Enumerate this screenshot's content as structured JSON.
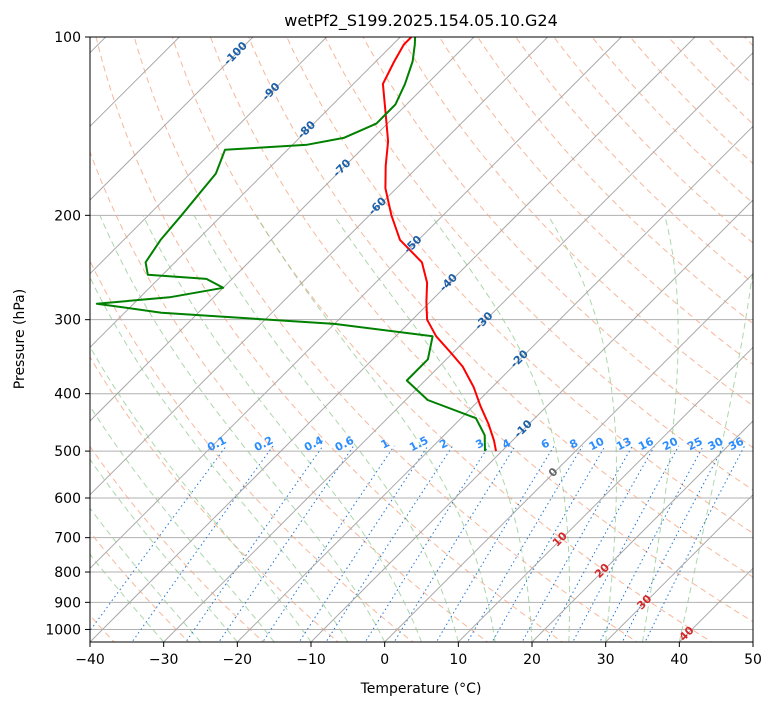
{
  "chart_data": {
    "type": "skew-t",
    "title": "wetPf2_S199.2025.154.05.10.G24",
    "xlabel": "Temperature (°C)",
    "ylabel": "Pressure (hPa)",
    "xlim": [
      -40,
      50
    ],
    "ylim_hpa": [
      1050,
      100
    ],
    "y_scale": "log",
    "grid": true,
    "x_ticks": [
      -40,
      -30,
      -20,
      -10,
      0,
      10,
      20,
      30,
      40,
      50
    ],
    "x_tick_labels": [
      "−40",
      "−30",
      "−20",
      "−10",
      "0",
      "10",
      "20",
      "30",
      "40",
      "50"
    ],
    "y_ticks": [
      100,
      200,
      300,
      400,
      500,
      600,
      700,
      800,
      900,
      1000
    ],
    "y_tick_labels": [
      "100",
      "200",
      "300",
      "400",
      "500",
      "600",
      "700",
      "800",
      "900",
      "1000"
    ],
    "isotherm_labels": {
      "values": [
        -100,
        -90,
        -80,
        -70,
        -60,
        -50,
        -40,
        -30,
        -20,
        -10,
        0,
        10,
        20,
        30,
        40
      ],
      "text": [
        "-100",
        "-90",
        "-80",
        "-70",
        "-60",
        "-50",
        "-40",
        "-30",
        "-20",
        "-10",
        "0",
        "10",
        "20",
        "30",
        "40"
      ]
    },
    "mixing_ratio_labels": {
      "values": [
        0.1,
        0.2,
        0.4,
        0.6,
        1,
        1.5,
        2,
        3,
        4,
        6,
        8,
        10,
        13,
        16,
        20,
        25,
        30,
        36
      ],
      "text": [
        "0.1",
        "0.2",
        "0.4",
        "0.6",
        "1",
        "1.5",
        "2",
        "3",
        "4",
        "6",
        "8",
        "10",
        "13",
        "16",
        "20",
        "25",
        "30",
        "36"
      ],
      "label_pressure_hpa": 500
    },
    "series": [
      {
        "kind": "temperature",
        "color": "#ff0000",
        "points": [
          {
            "p": 500,
            "t": -10.8
          },
          {
            "p": 480,
            "t": -12.5
          },
          {
            "p": 450,
            "t": -15.5
          },
          {
            "p": 420,
            "t": -19.0
          },
          {
            "p": 390,
            "t": -22.5
          },
          {
            "p": 360,
            "t": -26.8
          },
          {
            "p": 340,
            "t": -30.5
          },
          {
            "p": 320,
            "t": -34.5
          },
          {
            "p": 300,
            "t": -38.0
          },
          {
            "p": 280,
            "t": -40.5
          },
          {
            "p": 260,
            "t": -43.0
          },
          {
            "p": 240,
            "t": -46.5
          },
          {
            "p": 220,
            "t": -52.5
          },
          {
            "p": 200,
            "t": -57.0
          },
          {
            "p": 180,
            "t": -61.5
          },
          {
            "p": 165,
            "t": -64.5
          },
          {
            "p": 150,
            "t": -67.5
          },
          {
            "p": 135,
            "t": -71.5
          },
          {
            "p": 120,
            "t": -76.0
          },
          {
            "p": 110,
            "t": -77.5
          },
          {
            "p": 103,
            "t": -78.5
          },
          {
            "p": 100,
            "t": -78.5
          }
        ]
      },
      {
        "kind": "dewpoint",
        "color": "#008000",
        "points": [
          {
            "p": 500,
            "t": -12.3
          },
          {
            "p": 470,
            "t": -14.5
          },
          {
            "p": 440,
            "t": -18.0
          },
          {
            "p": 410,
            "t": -27.0
          },
          {
            "p": 380,
            "t": -32.5
          },
          {
            "p": 350,
            "t": -32.5
          },
          {
            "p": 320,
            "t": -35.0
          },
          {
            "p": 305,
            "t": -50.0
          },
          {
            "p": 292,
            "t": -75.0
          },
          {
            "p": 282,
            "t": -85.0
          },
          {
            "p": 275,
            "t": -76.0
          },
          {
            "p": 265,
            "t": -70.0
          },
          {
            "p": 256,
            "t": -73.5
          },
          {
            "p": 252,
            "t": -82.0
          },
          {
            "p": 240,
            "t": -84.0
          },
          {
            "p": 220,
            "t": -85.0
          },
          {
            "p": 200,
            "t": -85.5
          },
          {
            "p": 170,
            "t": -86.5
          },
          {
            "p": 155,
            "t": -88.5
          },
          {
            "p": 152,
            "t": -78.0
          },
          {
            "p": 148,
            "t": -74.0
          },
          {
            "p": 140,
            "t": -71.5
          },
          {
            "p": 130,
            "t": -71.5
          },
          {
            "p": 120,
            "t": -73.0
          },
          {
            "p": 110,
            "t": -75.0
          },
          {
            "p": 103,
            "t": -77.0
          },
          {
            "p": 100,
            "t": -78.0
          }
        ]
      }
    ]
  }
}
